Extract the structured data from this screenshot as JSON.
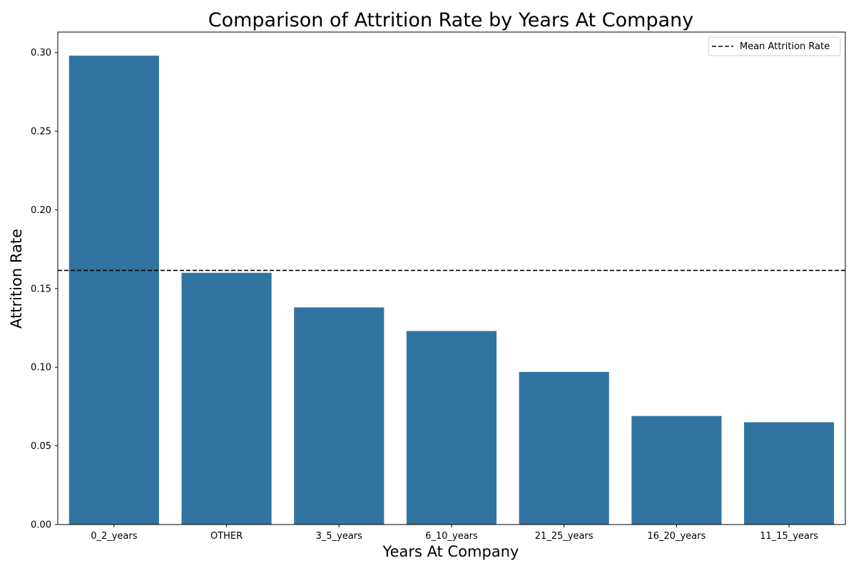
{
  "chart_data": {
    "type": "bar",
    "title": "Comparison of Attrition Rate by Years At Company",
    "xlabel": "Years At Company",
    "ylabel": "Attrition Rate",
    "categories": [
      "0_2_years",
      "OTHER",
      "3_5_years",
      "6_10_years",
      "21_25_years",
      "16_20_years",
      "11_15_years"
    ],
    "values": [
      0.298,
      0.16,
      0.138,
      0.123,
      0.097,
      0.069,
      0.065
    ],
    "ylim": [
      0,
      0.313
    ],
    "yticks": [
      0.0,
      0.05,
      0.1,
      0.15,
      0.2,
      0.25,
      0.3
    ],
    "ytick_labels": [
      "0.00",
      "0.05",
      "0.10",
      "0.15",
      "0.20",
      "0.25",
      "0.30"
    ],
    "bar_color": "#3274a1",
    "grid": false,
    "reference_line": {
      "label": "Mean Attrition Rate",
      "value": 0.1615,
      "color": "#000000",
      "style": "dashed"
    },
    "legend": {
      "placement": "top-right",
      "entries": [
        "Mean Attrition Rate"
      ]
    }
  }
}
